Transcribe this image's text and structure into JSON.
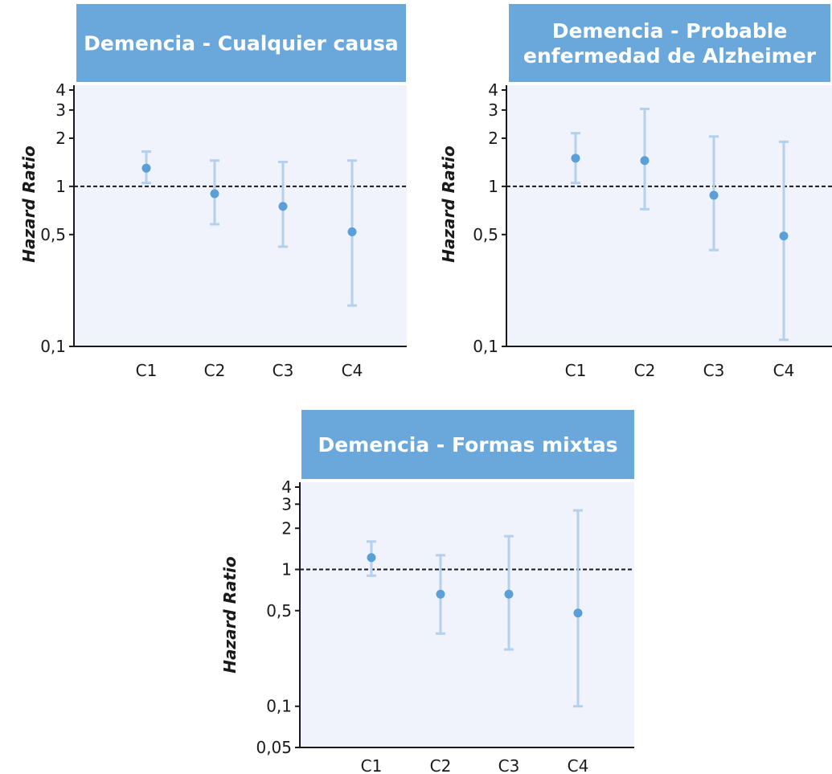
{
  "colors": {
    "title_bg": "#6aa8db",
    "plot_bg": "#f0f3fb",
    "point": "#5a9fd8",
    "errorbar": "#b3d0ec",
    "axis": "#1a1a1a",
    "reference_line": "#1a1a1a"
  },
  "chart_data": [
    {
      "type": "scatter",
      "title_lines": [
        "Demencia - Cualquier causa"
      ],
      "xlabel": "",
      "ylabel": "Hazard Ratio",
      "yscale": "log",
      "ylim": [
        0.1,
        4
      ],
      "yticks": [
        0.1,
        0.5,
        1,
        2,
        3,
        4
      ],
      "ytick_labels": [
        "0,1",
        "0,5",
        "1",
        "2",
        "3",
        "4"
      ],
      "reference_line": 1,
      "categories": [
        "C1",
        "C2",
        "C3",
        "C4"
      ],
      "values": [
        1.3,
        0.9,
        0.75,
        0.52
      ],
      "lower": [
        1.05,
        0.58,
        0.42,
        0.18
      ],
      "upper": [
        1.65,
        1.45,
        1.42,
        1.45
      ]
    },
    {
      "type": "scatter",
      "title_lines": [
        "Demencia - Probable",
        "enfermedad de Alzheimer"
      ],
      "xlabel": "",
      "ylabel": "Hazard Ratio",
      "yscale": "log",
      "ylim": [
        0.1,
        4
      ],
      "yticks": [
        0.1,
        0.5,
        1,
        2,
        3,
        4
      ],
      "ytick_labels": [
        "0,1",
        "0,5",
        "1",
        "2",
        "3",
        "4"
      ],
      "reference_line": 1,
      "categories": [
        "C1",
        "C2",
        "C3",
        "C4"
      ],
      "values": [
        1.5,
        1.45,
        0.88,
        0.49
      ],
      "lower": [
        1.05,
        0.72,
        0.4,
        0.11
      ],
      "upper": [
        2.15,
        3.05,
        2.05,
        1.9
      ]
    },
    {
      "type": "scatter",
      "title_lines": [
        "Demencia - Formas mixtas"
      ],
      "xlabel": "",
      "ylabel": "Hazard Ratio",
      "yscale": "log",
      "ylim": [
        0.05,
        4
      ],
      "yticks": [
        0.05,
        0.1,
        0.5,
        1,
        2,
        3,
        4
      ],
      "ytick_labels": [
        "0,05",
        "0,1",
        "0,5",
        "1",
        "2",
        "3",
        "4"
      ],
      "reference_line": 1,
      "categories": [
        "C1",
        "C2",
        "C3",
        "C4"
      ],
      "values": [
        1.22,
        0.66,
        0.66,
        0.48
      ],
      "lower": [
        0.9,
        0.34,
        0.26,
        0.1
      ],
      "upper": [
        1.6,
        1.27,
        1.75,
        2.7
      ]
    }
  ]
}
